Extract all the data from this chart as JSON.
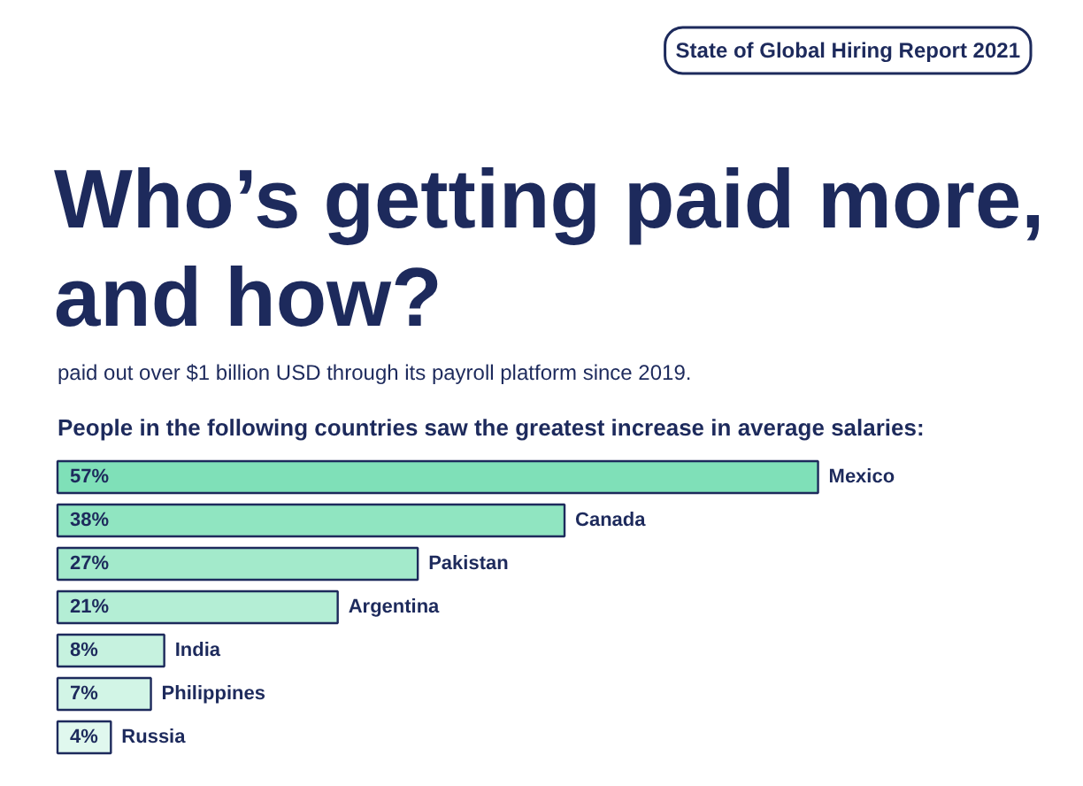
{
  "chart_data": {
    "type": "bar",
    "orientation": "horizontal",
    "title": "Who’s getting paid more,\nand how?",
    "subtitle": "People in the following countries saw the greatest increase in average salaries:",
    "annotations": [
      "State of Global Hiring Report 2021",
      "paid out over $1 billion USD through its payroll platform since 2019."
    ],
    "categories": [
      "Mexico",
      "Canada",
      "Pakistan",
      "Argentina",
      "India",
      "Philippines",
      "Russia"
    ],
    "values": [
      57,
      38,
      27,
      21,
      8,
      7,
      4
    ],
    "value_labels": [
      "57%",
      "38%",
      "27%",
      "21%",
      "8%",
      "7%",
      "4%"
    ],
    "colors": [
      "#7fe0b8",
      "#90e5c1",
      "#a3eacb",
      "#b4eed5",
      "#c6f2df",
      "#d2f5e6",
      "#e0f8ee"
    ],
    "grid": false
  }
}
